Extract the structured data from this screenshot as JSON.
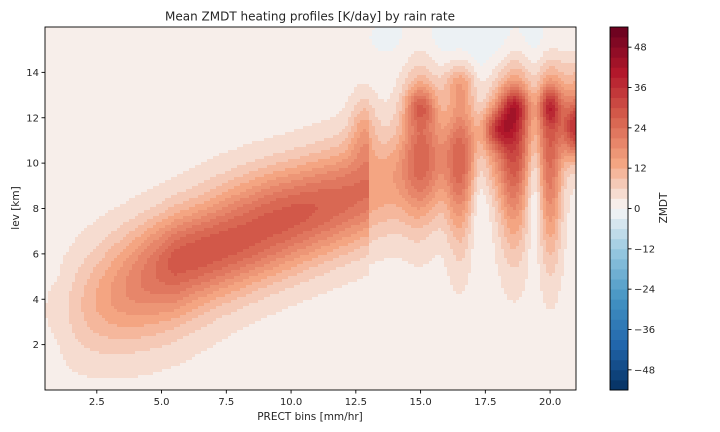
{
  "chart_data": {
    "type": "heatmap",
    "subtype": "filled-contour",
    "title": "Mean ZMDT heating profiles [K/day] by rain rate",
    "xlabel": "PRECT bins [mm/hr]",
    "ylabel": "lev [km]",
    "colorbar_label": "ZMDT",
    "colormap": "RdBu_r",
    "xlim": [
      0.5,
      21.0
    ],
    "ylim": [
      0.0,
      16.0
    ],
    "x_ticks": [
      2.5,
      5.0,
      7.5,
      10.0,
      12.5,
      15.0,
      17.5,
      20.0
    ],
    "y_ticks": [
      2,
      4,
      6,
      8,
      10,
      12,
      14
    ],
    "x_tick_labels": [
      "2.5",
      "5.0",
      "7.5",
      "10.0",
      "12.5",
      "15.0",
      "17.5",
      "20.0"
    ],
    "y_tick_labels": [
      "2",
      "4",
      "6",
      "8",
      "10",
      "12",
      "14"
    ],
    "levels": [
      -54,
      54
    ],
    "level_step": 3,
    "colorbar_ticks": [
      -48,
      -36,
      -24,
      -12,
      0,
      12,
      24,
      36,
      48
    ],
    "colorbar_tick_labels": [
      "−48",
      "−36",
      "−24",
      "−12",
      "0",
      "12",
      "24",
      "36",
      "48"
    ],
    "field_features": [
      {
        "x": 6.5,
        "y": 6.3,
        "value": 24
      },
      {
        "x": 8.5,
        "y": 7.8,
        "value": 24
      },
      {
        "x": 11.0,
        "y": 8.5,
        "value": 20
      },
      {
        "x": 15.0,
        "y": 12.5,
        "value": 30
      },
      {
        "x": 15.2,
        "y": 10.0,
        "value": 22
      },
      {
        "x": 16.5,
        "y": 13.5,
        "value": 18
      },
      {
        "x": 16.5,
        "y": 9.0,
        "value": 22
      },
      {
        "x": 18.0,
        "y": 11.5,
        "value": 38
      },
      {
        "x": 18.6,
        "y": 12.5,
        "value": 36
      },
      {
        "x": 18.6,
        "y": 9.5,
        "value": 30
      },
      {
        "x": 20.0,
        "y": 12.5,
        "value": 36
      },
      {
        "x": 20.0,
        "y": 9.0,
        "value": 30
      },
      {
        "x": 21.0,
        "y": 11.5,
        "value": 38
      },
      {
        "x": 16.0,
        "y": 15.5,
        "value": -2
      },
      {
        "x": 20.0,
        "y": 15.0,
        "value": -2
      }
    ]
  }
}
